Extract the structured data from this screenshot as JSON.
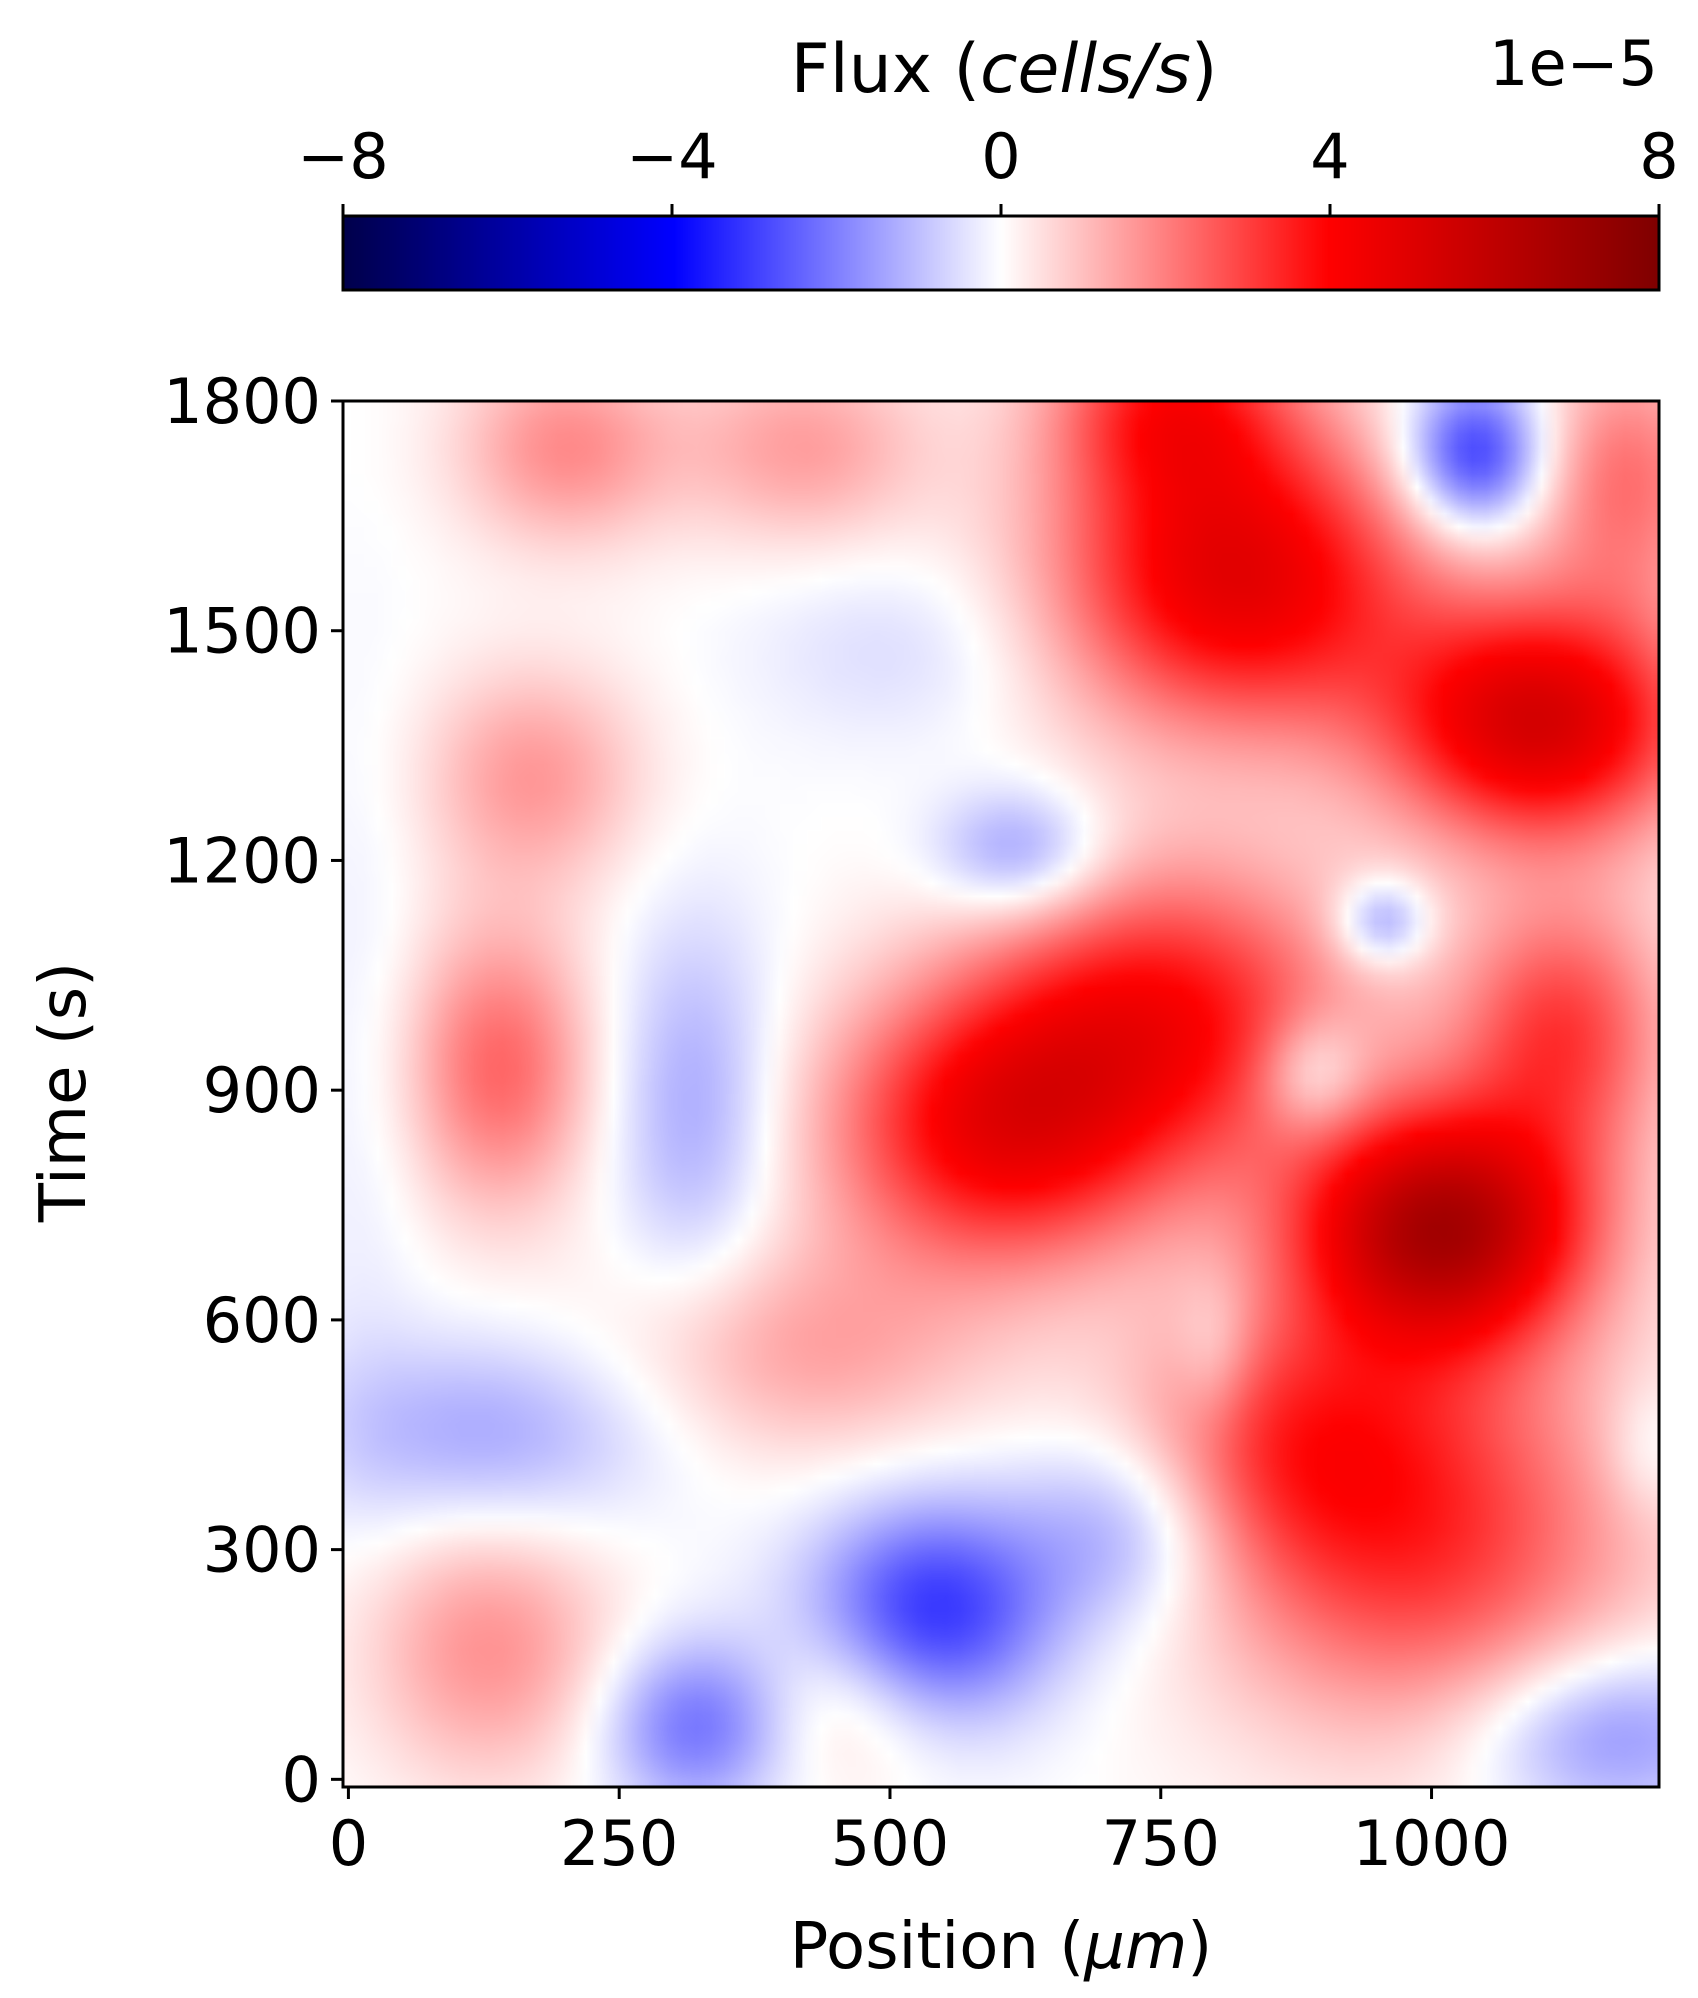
{
  "chart_data": {
    "type": "heatmap",
    "colormap": "seismic",
    "xlabel_prefix": "Position (",
    "xlabel_unit": "μm",
    "xlabel_suffix": ")",
    "ylabel": "Time (s)",
    "xlim": [
      -5,
      1210
    ],
    "ylim": [
      -10,
      1800
    ],
    "x_ticks": [
      0,
      250,
      500,
      750,
      1000
    ],
    "x_tick_labels": [
      "0",
      "250",
      "500",
      "750",
      "1000"
    ],
    "y_ticks": [
      0,
      300,
      600,
      900,
      1200,
      1500,
      1800
    ],
    "y_tick_labels": [
      "0",
      "300",
      "600",
      "900",
      "1200",
      "1500",
      "1800"
    ],
    "colorbar": {
      "title_prefix": "Flux (",
      "title_unit": "cells/s",
      "title_suffix": ")",
      "exponent_label": "1e−5",
      "placement": "top",
      "range": [
        -8,
        8
      ],
      "ticks": [
        -8,
        -4,
        0,
        4,
        8
      ],
      "tick_labels": [
        "−8",
        "−4",
        "0",
        "4",
        "8"
      ]
    },
    "field_blobs": [
      {
        "x": 1010,
        "y": 720,
        "sx": 95,
        "sy": 110,
        "v": 6.5
      },
      {
        "x": 1100,
        "y": 1380,
        "sx": 100,
        "sy": 110,
        "v": 5.2
      },
      {
        "x": 820,
        "y": 1570,
        "sx": 120,
        "sy": 140,
        "v": 4.8
      },
      {
        "x": 760,
        "y": 1800,
        "sx": 80,
        "sy": 90,
        "v": 3.0
      },
      {
        "x": 600,
        "y": 850,
        "sx": 110,
        "sy": 130,
        "v": 4.2
      },
      {
        "x": 760,
        "y": 1000,
        "sx": 120,
        "sy": 140,
        "v": 3.6
      },
      {
        "x": 1120,
        "y": 980,
        "sx": 70,
        "sy": 120,
        "v": 3.0
      },
      {
        "x": 990,
        "y": 320,
        "sx": 140,
        "sy": 180,
        "v": 3.2
      },
      {
        "x": 860,
        "y": 450,
        "sx": 100,
        "sy": 120,
        "v": 2.0
      },
      {
        "x": 140,
        "y": 930,
        "sx": 60,
        "sy": 130,
        "v": 2.4
      },
      {
        "x": 170,
        "y": 1310,
        "sx": 70,
        "sy": 100,
        "v": 1.6
      },
      {
        "x": 200,
        "y": 1740,
        "sx": 70,
        "sy": 90,
        "v": 1.8
      },
      {
        "x": 420,
        "y": 1740,
        "sx": 80,
        "sy": 90,
        "v": 1.5
      },
      {
        "x": 130,
        "y": 170,
        "sx": 80,
        "sy": 120,
        "v": 1.7
      },
      {
        "x": 420,
        "y": 560,
        "sx": 120,
        "sy": 100,
        "v": 1.4
      },
      {
        "x": 460,
        "y": 100,
        "sx": 60,
        "sy": 80,
        "v": 0.9
      },
      {
        "x": 1180,
        "y": 1700,
        "sx": 60,
        "sy": 120,
        "v": 2.2
      },
      {
        "x": 540,
        "y": 220,
        "sx": 80,
        "sy": 100,
        "v": -3.2
      },
      {
        "x": 320,
        "y": 70,
        "sx": 60,
        "sy": 80,
        "v": -2.2
      },
      {
        "x": 720,
        "y": 330,
        "sx": 70,
        "sy": 90,
        "v": -1.6
      },
      {
        "x": 130,
        "y": 450,
        "sx": 110,
        "sy": 90,
        "v": -1.4
      },
      {
        "x": 320,
        "y": 880,
        "sx": 55,
        "sy": 170,
        "v": -1.4
      },
      {
        "x": 620,
        "y": 1210,
        "sx": 55,
        "sy": 60,
        "v": -1.8
      },
      {
        "x": 1040,
        "y": 1730,
        "sx": 45,
        "sy": 70,
        "v": -3.4
      },
      {
        "x": 955,
        "y": 1120,
        "sx": 30,
        "sy": 40,
        "v": -1.9
      },
      {
        "x": 890,
        "y": 920,
        "sx": 35,
        "sy": 55,
        "v": -1.6
      },
      {
        "x": 1160,
        "y": 60,
        "sx": 90,
        "sy": 80,
        "v": -1.9
      },
      {
        "x": 800,
        "y": 560,
        "sx": 25,
        "sy": 70,
        "v": -0.8
      },
      {
        "x": 1200,
        "y": 430,
        "sx": 30,
        "sy": 60,
        "v": -0.7
      },
      {
        "x": 15,
        "y": 900,
        "sx": 40,
        "sy": 400,
        "v": -0.3
      },
      {
        "x": 520,
        "y": 1480,
        "sx": 100,
        "sy": 90,
        "v": -0.6
      }
    ]
  }
}
